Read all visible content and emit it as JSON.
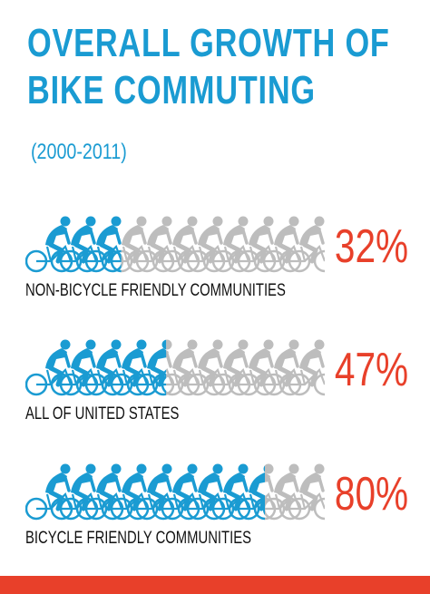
{
  "title_line1": "OVERALL GROWTH OF",
  "title_line2": "BIKE COMMUTING",
  "subtitle": "(2000-2011)",
  "colors": {
    "accent_blue": "#1a9bd2",
    "gray": "#bdbdbd",
    "red": "#e8402a"
  },
  "chart_data": {
    "type": "bar",
    "title": "OVERALL GROWTH OF BIKE COMMUTING",
    "subtitle": "(2000-2011)",
    "categories": [
      "NON-BICYCLE FRIENDLY COMMUNITIES",
      "ALL OF UNITED STATES",
      "BICYCLE FRIENDLY COMMUNITIES"
    ],
    "values": [
      32,
      47,
      80
    ],
    "value_labels": [
      "32%",
      "47%",
      "80%"
    ],
    "unit": "%",
    "ylim": [
      0,
      100
    ],
    "icon": "cyclist-icon"
  }
}
